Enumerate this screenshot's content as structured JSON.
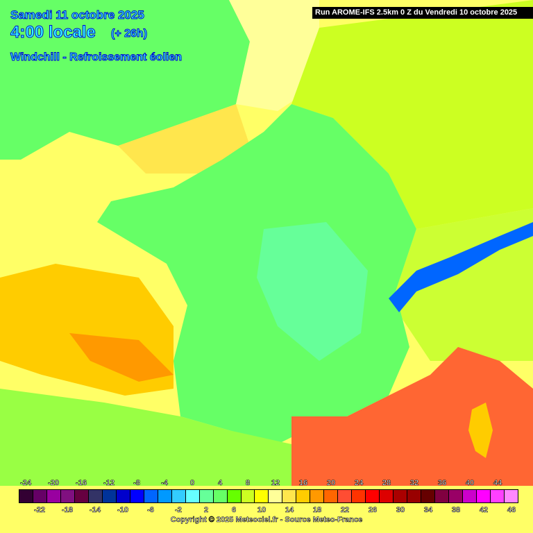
{
  "header": {
    "date": "Samedi 11 octobre 2025",
    "time": "4:00 locale",
    "lead": "(+ 26h)",
    "parameter": "Windchill - Refroissement éolien",
    "run": "Run AROME-IFS 2.5km 0 Z du Vendredi 10 octobre 2025"
  },
  "legend": {
    "values": [
      -24,
      -22,
      -20,
      -18,
      -16,
      -14,
      -12,
      -10,
      -8,
      -6,
      -4,
      -2,
      0,
      2,
      4,
      6,
      8,
      10,
      12,
      14,
      16,
      18,
      20,
      22,
      24,
      26,
      28,
      30,
      32,
      34,
      36,
      38,
      40,
      42,
      44,
      46
    ],
    "colors": [
      "#330033",
      "#660066",
      "#9900a0",
      "#801080",
      "#660040",
      "#333366",
      "#003399",
      "#0000cc",
      "#0000ff",
      "#0066ff",
      "#0099ff",
      "#33ccff",
      "#66ffff",
      "#66ff99",
      "#66ff66",
      "#66ff00",
      "#ccff22",
      "#ffff00",
      "#ffff99",
      "#ffe64d",
      "#ffcc00",
      "#ff9900",
      "#ff6600",
      "#ff4d33",
      "#ff3300",
      "#ff0000",
      "#dd0000",
      "#aa0000",
      "#990000",
      "#660000",
      "#800040",
      "#990066",
      "#cc00cc",
      "#ff00ff",
      "#ff40ff",
      "#ff88ff"
    ]
  },
  "copyright": "Copyright © 2025 Meteociel.fr - Source Meteo-France"
}
